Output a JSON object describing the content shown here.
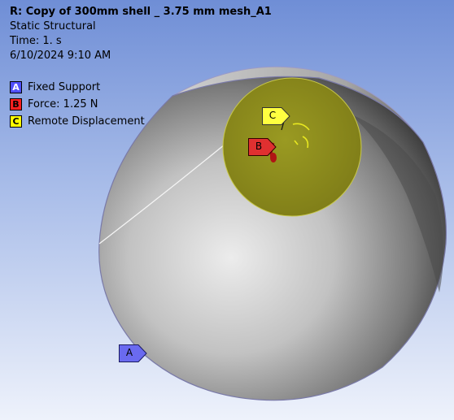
{
  "header": {
    "title": "R: Copy of 300mm shell _ 3.75 mm mesh_A1",
    "analysis_type": "Static Structural",
    "time": "Time: 1. s",
    "date": "6/10/2024 9:10 AM"
  },
  "legend": [
    {
      "letter": "A",
      "label": "Fixed Support",
      "color": "#5050ff"
    },
    {
      "letter": "B",
      "label": "Force: 1.25 N",
      "color": "#ff2020"
    },
    {
      "letter": "C",
      "label": "Remote Displacement",
      "color": "#ffff00"
    }
  ],
  "markers": {
    "A": "A",
    "B": "B",
    "C": "C"
  },
  "colors": {
    "fixed_support": "#6a6af0",
    "force": "#e03030",
    "remote_displacement": "#ffff40",
    "face": "#8e8c1c"
  }
}
